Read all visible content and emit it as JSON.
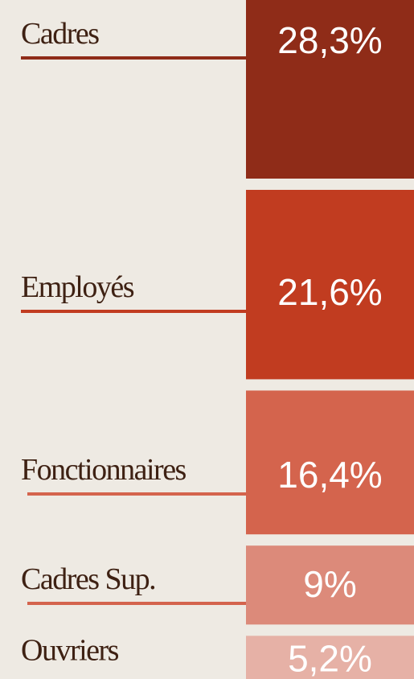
{
  "chart_data": {
    "type": "stacked_column",
    "categories": [
      "Cadres",
      "Employés",
      "Fonctionnaires",
      "Cadres Sup.",
      "Ouvriers"
    ],
    "values": [
      28.3,
      21.6,
      16.4,
      9,
      5.2
    ],
    "value_labels": [
      "28,3%",
      "21,6%",
      "16,4%",
      "9%",
      "5,2%"
    ],
    "colors": [
      "#8f2c18",
      "#c13c20",
      "#d4644d",
      "#dc8a7a",
      "#e6b1a6"
    ]
  }
}
